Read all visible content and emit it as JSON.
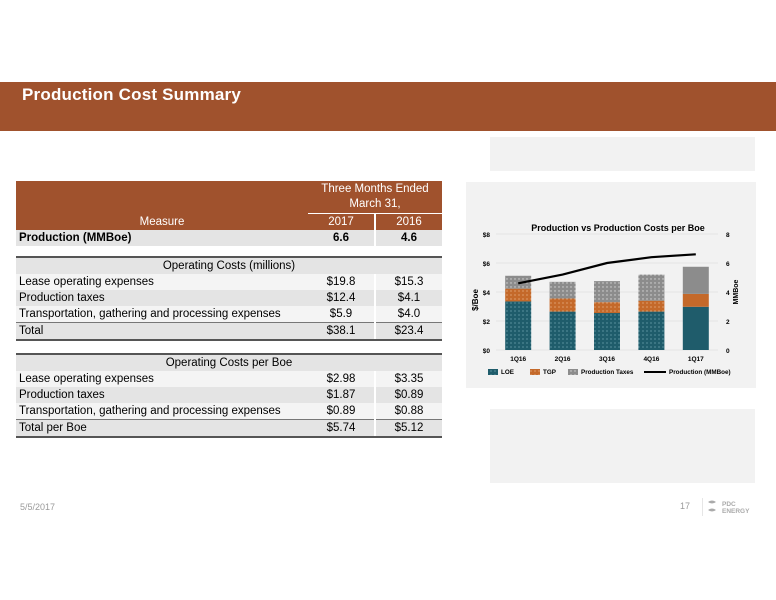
{
  "title": "Production Cost Summary",
  "table": {
    "header": {
      "group": "Three Months Ended March 31,",
      "measure": "Measure",
      "col1": "2017",
      "col2": "2016"
    },
    "production": {
      "label": "Production (MMBoe)",
      "v2017": "6.6",
      "v2016": "4.6"
    },
    "operating_costs": {
      "heading": "Operating Costs (millions)",
      "rows": [
        {
          "label": "Lease operating expenses",
          "v2017": "$19.8",
          "v2016": "$15.3"
        },
        {
          "label": "Production taxes",
          "v2017": "$12.4",
          "v2016": "$4.1"
        },
        {
          "label": "Transportation, gathering and processing expenses",
          "v2017": "$5.9",
          "v2016": "$4.0"
        }
      ],
      "total": {
        "label": "Total",
        "v2017": "$38.1",
        "v2016": "$23.4"
      }
    },
    "per_boe": {
      "heading": "Operating Costs per Boe",
      "rows": [
        {
          "label": "Lease operating expenses",
          "v2017": "$2.98",
          "v2016": "$3.35"
        },
        {
          "label": "Production taxes",
          "v2017": "$1.87",
          "v2016": "$0.89"
        },
        {
          "label": "Transportation, gathering and processing expenses",
          "v2017": "$0.89",
          "v2016": "$0.88"
        }
      ],
      "total": {
        "label": "Total per Boe",
        "v2017": "$5.74",
        "v2016": "$5.12"
      }
    }
  },
  "chart_data": {
    "type": "bar",
    "title": "Production vs Production Costs per Boe",
    "categories": [
      "1Q16",
      "2Q16",
      "3Q16",
      "4Q16",
      "1Q17"
    ],
    "ylabel": "$/Boe",
    "y2label": "MMBoe",
    "ylim": [
      0,
      8
    ],
    "y2lim": [
      0,
      8
    ],
    "yticks": [
      "$0",
      "$2",
      "$4",
      "$6",
      "$8"
    ],
    "y2ticks": [
      "0",
      "2",
      "4",
      "6",
      "8"
    ],
    "stacked": true,
    "series": [
      {
        "name": "LOE",
        "values": [
          3.35,
          2.65,
          2.55,
          2.65,
          2.98
        ],
        "color": "#1F5C6B"
      },
      {
        "name": "TGP",
        "values": [
          0.88,
          0.9,
          0.75,
          0.75,
          0.89
        ],
        "color": "#C4692A"
      },
      {
        "name": "Production Taxes",
        "values": [
          0.89,
          1.15,
          1.45,
          1.8,
          1.87
        ],
        "color": "#8C8C8C"
      }
    ],
    "line": {
      "name": "Production (MMBoe)",
      "values": [
        4.6,
        5.2,
        6.0,
        6.4,
        6.6
      ],
      "color": "#000000"
    },
    "legend_position": "bottom"
  },
  "footer": {
    "date": "5/5/2017",
    "page": "17",
    "logo_line1": "PDC",
    "logo_line2": "ENERGY"
  }
}
